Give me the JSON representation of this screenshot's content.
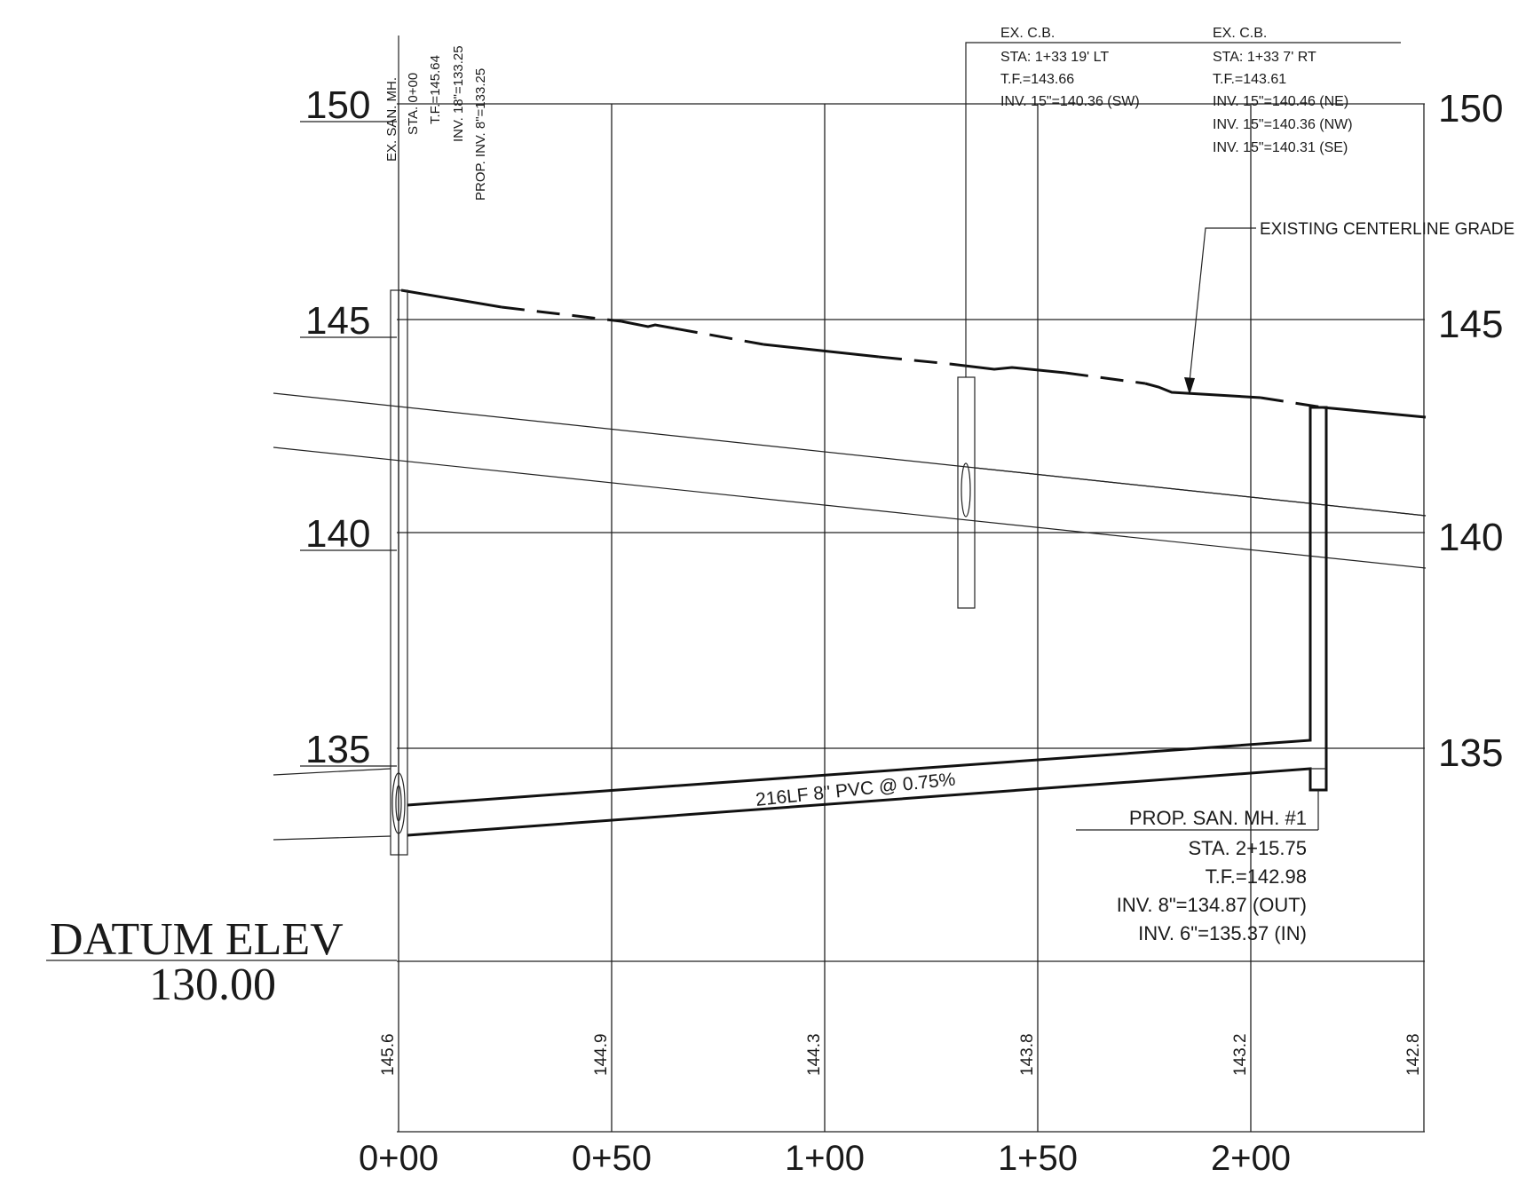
{
  "elevation_labels_left": [
    "150",
    "145",
    "140",
    "135"
  ],
  "elevation_labels_right": [
    "150",
    "145",
    "140",
    "135"
  ],
  "station_labels": [
    "0+00",
    "0+50",
    "1+00",
    "1+50",
    "2+00"
  ],
  "grade_values": [
    "145.6",
    "144.9",
    "144.3",
    "143.8",
    "143.2",
    "142.8"
  ],
  "datum": {
    "title": "DATUM ELEV",
    "value": "130.00"
  },
  "existing_mh": {
    "lines": [
      "EX. SAN. MH.",
      "STA. 0+00",
      "T.F.=145.64",
      "INV. 18\"=133.25",
      "PROP. INV. 8\"=133.25"
    ]
  },
  "ex_cb_1": {
    "lines": [
      "EX. C.B.",
      "STA: 1+33 19' LT",
      "T.F.=143.66",
      "INV. 15\"=140.36 (SW)"
    ]
  },
  "ex_cb_2": {
    "lines": [
      "EX. C.B.",
      "STA: 1+33 7' RT",
      "T.F.=143.61",
      "INV. 15\"=140.46 (NE)",
      "INV. 15\"=140.36 (NW)",
      "INV. 15\"=140.31 (SE)"
    ]
  },
  "grade_callout": "EXISTING CENTERLINE GRADE",
  "pipe_label": "216LF 8\" PVC @ 0.75%",
  "prop_mh": {
    "lines": [
      "PROP. SAN. MH. #1",
      "STA. 2+15.75",
      "T.F.=142.98",
      "INV. 8\"=134.87 (OUT)",
      "INV. 6\"=135.37 (IN)"
    ]
  }
}
